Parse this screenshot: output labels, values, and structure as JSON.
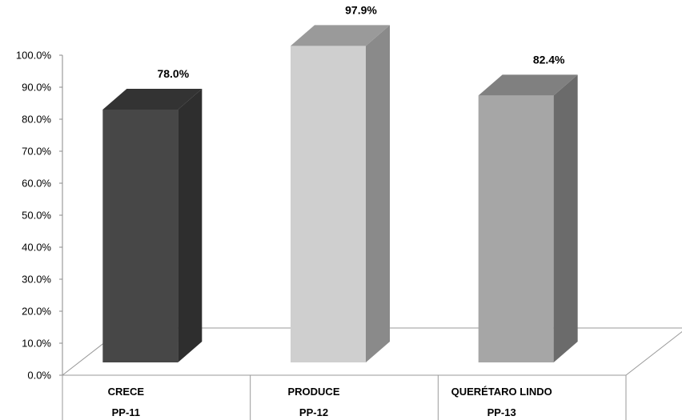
{
  "chart_data": {
    "type": "bar",
    "categories": [
      {
        "name": "CRECE",
        "code": "PP-11"
      },
      {
        "name": "PRODUCE",
        "code": "PP-12"
      },
      {
        "name": "QUERÉTARO LINDO",
        "code": "PP-13"
      }
    ],
    "values": [
      78.0,
      97.9,
      82.4
    ],
    "value_labels": [
      "78.0%",
      "97.9%",
      "82.4%"
    ],
    "ylim": [
      0,
      100
    ],
    "yticks": [
      "0.0%",
      "10.0%",
      "20.0%",
      "30.0%",
      "40.0%",
      "50.0%",
      "60.0%",
      "70.0%",
      "80.0%",
      "90.0%",
      "100.0%"
    ],
    "grid": false,
    "legend": "none",
    "colors": {
      "bars": [
        "#474747",
        "#cfcfcf",
        "#a6a6a6"
      ],
      "bar_sides": [
        "#2e2e2e",
        "#8a8a8a",
        "#6b6b6b"
      ],
      "bar_tops": [
        "#333333",
        "#9a9a9a",
        "#808080"
      ]
    }
  }
}
